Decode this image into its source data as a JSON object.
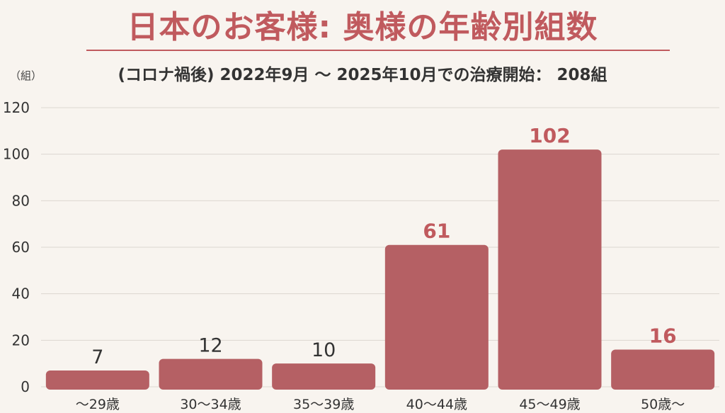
{
  "title": "日本のお客様: 奥様の年齢別組数",
  "subtitle": "(コロナ禍後) 2022年9月 〜 2025年10月での治療開始： 208組",
  "unit_label": "（組）",
  "colors": {
    "bar": "#b56064",
    "highlight_label": "#c05a5e",
    "normal_label": "#333333",
    "grid": "#dcd7d0",
    "title": "#c05a5e"
  },
  "chart_data": {
    "type": "bar",
    "categories": [
      "〜29歳",
      "30〜34歳",
      "35〜39歳",
      "40〜44歳",
      "45〜49歳",
      "50歳〜"
    ],
    "values": [
      7,
      12,
      10,
      61,
      102,
      16
    ],
    "value_labels": [
      "7",
      "12",
      "10",
      "61",
      "102",
      "16"
    ],
    "highlighted": [
      false,
      false,
      false,
      true,
      true,
      true
    ],
    "ylim": [
      0,
      120
    ],
    "yticks": [
      0,
      20,
      40,
      60,
      80,
      100,
      120
    ],
    "ylabel": "（組）",
    "grid": true
  }
}
